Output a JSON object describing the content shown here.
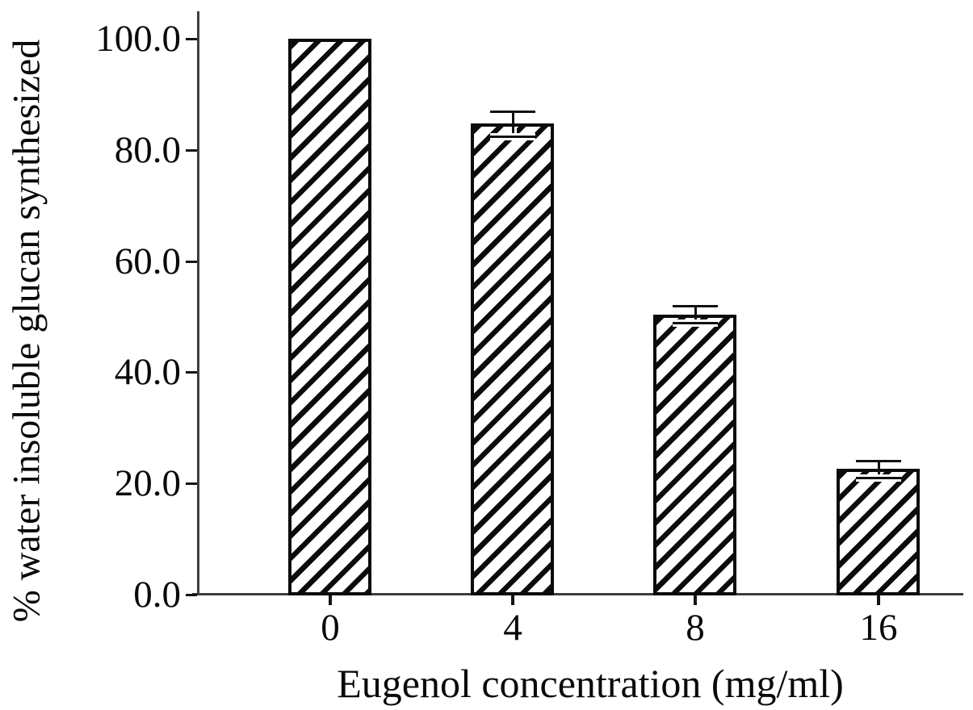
{
  "chart_data": {
    "type": "bar",
    "xlabel": "Eugenol concentration (mg/ml)",
    "ylabel": "% water insoluble glucan synthesized",
    "categories": [
      "0",
      "4",
      "8",
      "16"
    ],
    "values": [
      100.0,
      84.7,
      50.4,
      22.6
    ],
    "errors": [
      0,
      2.2,
      1.5,
      1.5
    ],
    "yticks": [
      0,
      20,
      40,
      60,
      80,
      100
    ],
    "ytick_labels": [
      "0.0",
      "20.0",
      "40.0",
      "60.0",
      "80.0",
      "100.0"
    ],
    "ylim": [
      0,
      105
    ],
    "bar_fill": "diagonal-hatch",
    "bar_color": "#0b0b0b",
    "axis_color": "#3d3d3d",
    "background_color": "#ffffff",
    "grid": false,
    "legend": false
  }
}
